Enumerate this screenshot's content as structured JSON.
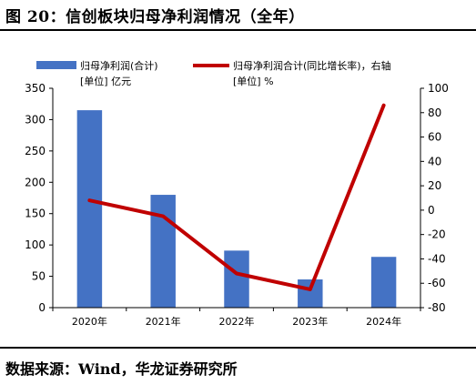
{
  "title": "图 20：信创板块归母净利润情况（全年）",
  "source": "数据来源：Wind，华龙证券研究所",
  "colors": {
    "bar": "#4472C4",
    "line": "#C00000",
    "axis": "#000000"
  },
  "chart_data": {
    "type": "bar",
    "categories": [
      "2020年",
      "2021年",
      "2022年",
      "2023年",
      "2024年"
    ],
    "series": [
      {
        "name": "归母净利润(合计)",
        "unit": "[单位] 亿元",
        "type": "bar",
        "axis": "left",
        "values": [
          315,
          180,
          91,
          45,
          81
        ]
      },
      {
        "name": "归母净利润合计(同比增长率)，右轴",
        "unit": "[单位] %",
        "type": "line",
        "axis": "right",
        "values": [
          8,
          -5,
          -52,
          -65,
          86
        ]
      }
    ],
    "y_left": {
      "min": 0,
      "max": 350,
      "ticks": [
        0,
        50,
        100,
        150,
        200,
        250,
        300,
        350
      ]
    },
    "y_right": {
      "min": -80,
      "max": 100,
      "ticks": [
        -80,
        -60,
        -40,
        -20,
        0,
        20,
        40,
        60,
        80,
        100
      ]
    },
    "grid": false,
    "legend_position": "top"
  }
}
